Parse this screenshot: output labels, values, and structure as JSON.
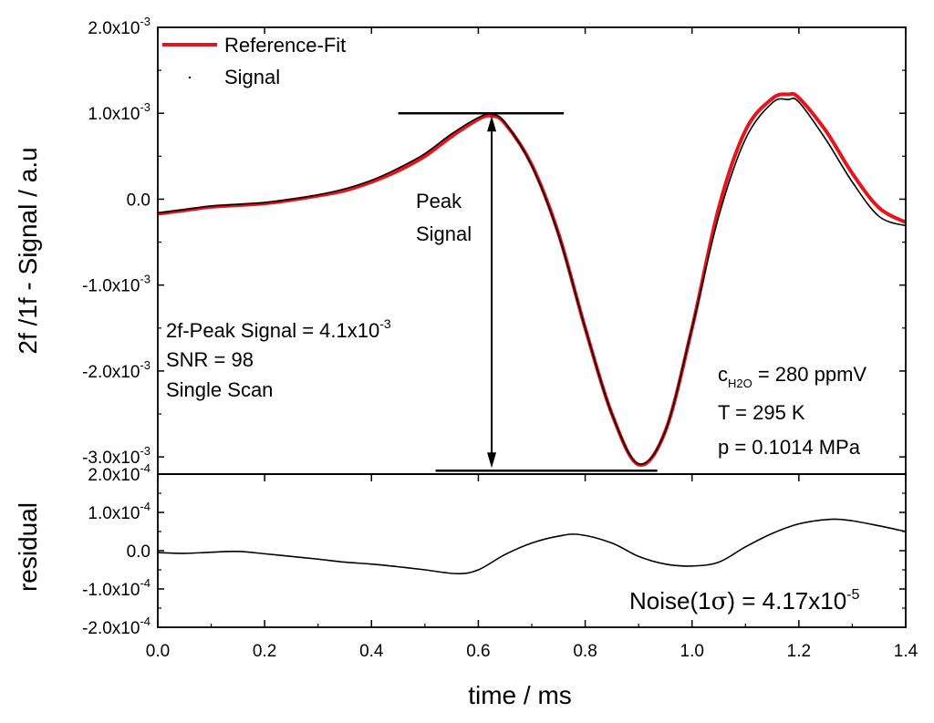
{
  "chart_data": [
    {
      "type": "line",
      "panel": "main",
      "ylabel": "2f /1f - Signal / a.u",
      "xlim": [
        0.0,
        1.4
      ],
      "ylim": [
        -0.0032,
        0.002
      ],
      "yticks": [
        {
          "value": 0.002,
          "label": "2.0x10",
          "exp": "-3"
        },
        {
          "value": 0.001,
          "label": "1.0x10",
          "exp": "-3"
        },
        {
          "value": 0.0,
          "label": "0.0",
          "exp": ""
        },
        {
          "value": -0.001,
          "label": "-1.0x10",
          "exp": "-3"
        },
        {
          "value": -0.002,
          "label": "-2.0x10",
          "exp": "-3"
        },
        {
          "value": -0.003,
          "label": "-3.0x10",
          "exp": "-3"
        }
      ],
      "legend": {
        "position": "top-left",
        "entries": [
          {
            "name": "Reference-Fit",
            "color": "#e8141c"
          },
          {
            "name": "Signal",
            "color": "#000000"
          }
        ]
      },
      "series": [
        {
          "name": "Reference-Fit",
          "color": "#e8141c",
          "x": [
            0.0,
            0.05,
            0.1,
            0.15,
            0.2,
            0.25,
            0.3,
            0.35,
            0.4,
            0.45,
            0.5,
            0.55,
            0.6,
            0.625,
            0.65,
            0.7,
            0.75,
            0.8,
            0.85,
            0.9,
            0.95,
            1.0,
            1.05,
            1.1,
            1.15,
            1.18,
            1.2,
            1.25,
            1.3,
            1.35,
            1.4
          ],
          "y": [
            -0.00017,
            -0.00013,
            -9e-05,
            -7e-05,
            -5e-05,
            -1e-05,
            4e-05,
            0.0001,
            0.0002,
            0.00033,
            0.0005,
            0.00073,
            0.00093,
            0.00097,
            0.00088,
            0.0004,
            -0.0004,
            -0.0015,
            -0.0025,
            -0.00309,
            -0.0027,
            -0.0015,
            -0.0001,
            0.0008,
            0.00117,
            0.00122,
            0.00118,
            0.0008,
            0.0003,
            -0.0001,
            -0.00027
          ]
        },
        {
          "name": "Signal",
          "color": "#000000",
          "x": [
            0.0,
            0.05,
            0.1,
            0.15,
            0.2,
            0.25,
            0.3,
            0.35,
            0.4,
            0.45,
            0.5,
            0.55,
            0.6,
            0.625,
            0.65,
            0.7,
            0.75,
            0.8,
            0.85,
            0.9,
            0.95,
            1.0,
            1.05,
            1.1,
            1.15,
            1.18,
            1.2,
            1.25,
            1.3,
            1.35,
            1.4
          ],
          "y": [
            -0.00016,
            -0.00012,
            -8e-05,
            -6e-05,
            -4e-05,
            0.0,
            5e-05,
            0.00012,
            0.00022,
            0.00036,
            0.00053,
            0.00076,
            0.00095,
            0.00099,
            0.00089,
            0.00039,
            -0.00041,
            -0.0015,
            -0.0025,
            -0.00308,
            -0.0027,
            -0.0015,
            -0.0002,
            0.0007,
            0.00112,
            0.00116,
            0.00113,
            0.0007,
            0.0002,
            -0.0002,
            -0.00031
          ]
        }
      ],
      "annotations": {
        "peak_label_line1": "Peak",
        "peak_label_line2": "Signal",
        "peak_top_y": 0.001,
        "peak_bottom_y": -0.00316,
        "stats_line1": "2f-Peak Signal = 4.1x10",
        "stats_line1_exp": "-3",
        "stats_line2": "SNR = 98",
        "stats_line3": "Single Scan",
        "cond_c_prefix": "c",
        "cond_c_sub": "H2O",
        "cond_c_rest": " = 280 ppmV",
        "cond_T": "T = 295 K",
        "cond_p": "p = 0.1014 MPa"
      }
    },
    {
      "type": "line",
      "panel": "residual",
      "xlabel": "time / ms",
      "ylabel": "residual",
      "xlim": [
        0.0,
        1.4
      ],
      "ylim": [
        -0.0002,
        0.0002
      ],
      "xticks": [
        "0.0",
        "0.2",
        "0.4",
        "0.6",
        "0.8",
        "1.0",
        "1.2",
        "1.4"
      ],
      "yticks": [
        {
          "value": 0.0002,
          "label": "2.0x10",
          "exp": "-4"
        },
        {
          "value": 0.0001,
          "label": "1.0x10",
          "exp": "-4"
        },
        {
          "value": 0.0,
          "label": "0.0",
          "exp": ""
        },
        {
          "value": -0.0001,
          "label": "-1.0x10",
          "exp": "-4"
        },
        {
          "value": -0.0002,
          "label": "-2.0x10",
          "exp": "-4"
        }
      ],
      "series": [
        {
          "color": "#000000",
          "x": [
            0.0,
            0.05,
            0.1,
            0.15,
            0.2,
            0.25,
            0.3,
            0.35,
            0.4,
            0.45,
            0.5,
            0.56,
            0.6,
            0.65,
            0.7,
            0.75,
            0.79,
            0.85,
            0.9,
            0.95,
            1.0,
            1.05,
            1.1,
            1.15,
            1.2,
            1.26,
            1.3,
            1.35,
            1.4
          ],
          "y": [
            -5e-06,
            -7e-06,
            -4e-06,
            -2e-06,
            -8e-06,
            -1.5e-05,
            -2.2e-05,
            -3e-05,
            -3.5e-05,
            -4.2e-05,
            -5e-05,
            -6e-05,
            -5e-05,
            -1e-05,
            2e-05,
            3.8e-05,
            4.2e-05,
            2e-05,
            -1.5e-05,
            -3.5e-05,
            -4e-05,
            -3e-05,
            1e-05,
            4.5e-05,
            7e-05,
            8.2e-05,
            7.8e-05,
            6.5e-05,
            5e-05
          ]
        }
      ],
      "annotations": {
        "noise_prefix": "Noise(1",
        "noise_sigma": "σ",
        "noise_rest": ") = 4.17x10",
        "noise_exp": "-5"
      }
    }
  ]
}
